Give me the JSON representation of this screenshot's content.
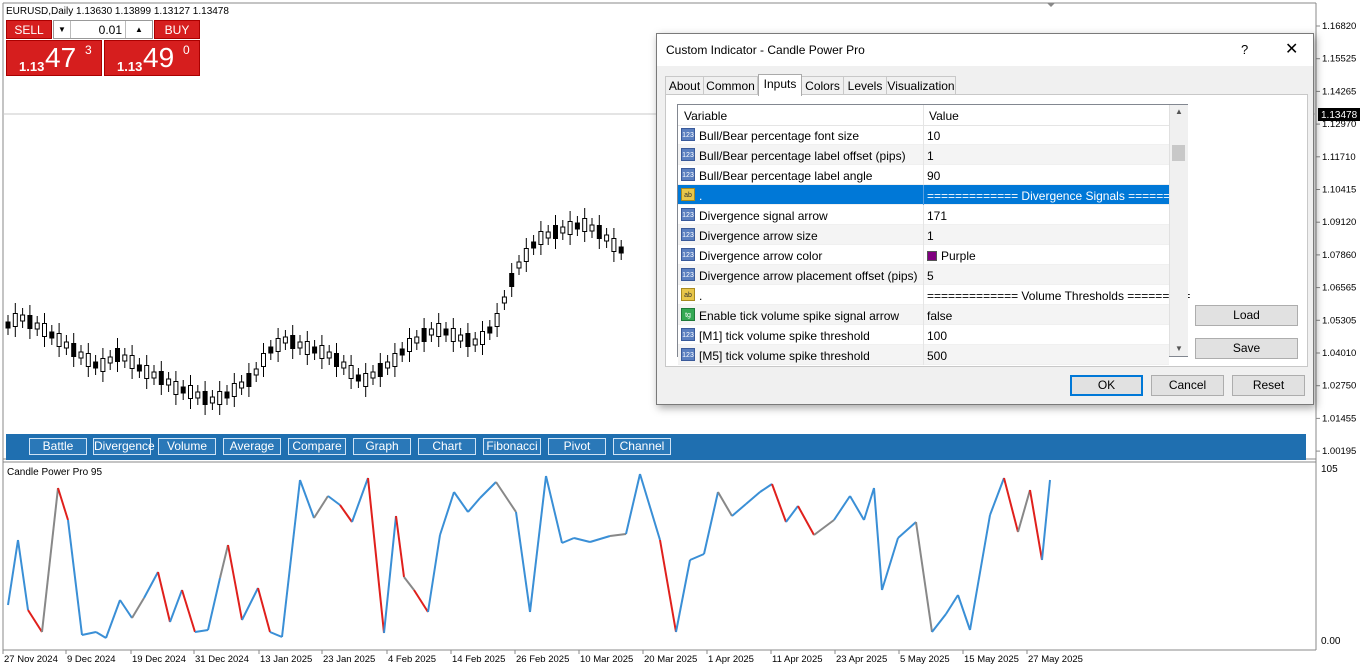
{
  "chart": {
    "symbol_label": "EURUSD,Daily  1.13630 1.13899 1.13127 1.13478",
    "indicator_label": "Candle Power Pro 95",
    "current_price": "1.13478",
    "price_axis": [
      "1.16820",
      "1.15525",
      "1.14265",
      "1.12970",
      "1.11710",
      "1.10415",
      "1.09120",
      "1.07860",
      "1.06565",
      "1.05305",
      "1.04010",
      "1.02750",
      "1.01455",
      "1.00195"
    ],
    "indicator_axis": [
      "105",
      "0.00"
    ],
    "date_axis": [
      "27 Nov 2024",
      "9 Dec 2024",
      "19 Dec 2024",
      "31 Dec 2024",
      "13 Jan 2025",
      "23 Jan 2025",
      "4 Feb 2025",
      "14 Feb 2025",
      "26 Feb 2025",
      "10 Mar 2025",
      "20 Mar 2025",
      "1 Apr 2025",
      "11 Apr 2025",
      "23 Apr 2025",
      "5 May 2025",
      "15 May 2025",
      "27 May 2025"
    ]
  },
  "trade_panel": {
    "sell_label": "SELL",
    "buy_label": "BUY",
    "lot": "0.01",
    "sell_prefix": "1.13",
    "sell_big": "47",
    "sell_sup": "3",
    "buy_prefix": "1.13",
    "buy_big": "49",
    "buy_sup": "0"
  },
  "toolbar_buttons": [
    "Battle",
    "Divergence",
    "Volume",
    "Average",
    "Compare",
    "Graph",
    "Chart",
    "Fibonacci",
    "Pivot",
    "Channel"
  ],
  "dialog": {
    "title": "Custom Indicator - Candle Power Pro",
    "help": "?",
    "close": "✕",
    "tabs": [
      "About",
      "Common",
      "Inputs",
      "Colors",
      "Levels",
      "Visualization"
    ],
    "grid_header": {
      "variable": "Variable",
      "value": "Value"
    },
    "rows": [
      {
        "icon": "123",
        "name": "Bull/Bear percentage font size",
        "value": "10"
      },
      {
        "icon": "123",
        "name": "Bull/Bear percentage label offset (pips)",
        "value": "1"
      },
      {
        "icon": "123",
        "name": "Bull/Bear percentage label angle",
        "value": "90"
      },
      {
        "icon": "ab",
        "name": ".",
        "value": "============= Divergence Signals ========="
      },
      {
        "icon": "123",
        "name": "Divergence signal arrow",
        "value": "171"
      },
      {
        "icon": "123",
        "name": "Divergence arrow size",
        "value": "1"
      },
      {
        "icon": "123",
        "name": "Divergence arrow color",
        "value": "Purple"
      },
      {
        "icon": "123",
        "name": "Divergence arrow placement offset (pips)",
        "value": "5"
      },
      {
        "icon": "ab",
        "name": ".",
        "value": "============= Volume Thresholds ========="
      },
      {
        "icon": "tg",
        "name": "Enable tick volume spike signal arrow",
        "value": "false"
      },
      {
        "icon": "123",
        "name": "[M1] tick volume spike threshold",
        "value": "100"
      },
      {
        "icon": "123",
        "name": "[M5] tick volume spike threshold",
        "value": "500"
      }
    ],
    "side_buttons": {
      "load": "Load",
      "save": "Save"
    },
    "footer_buttons": {
      "ok": "OK",
      "cancel": "Cancel",
      "reset": "Reset"
    }
  },
  "colors": {
    "bull": "#3a8fd6",
    "bear": "#e0201c",
    "star": "#7a1a7a",
    "bar": "#1f6fb0"
  }
}
